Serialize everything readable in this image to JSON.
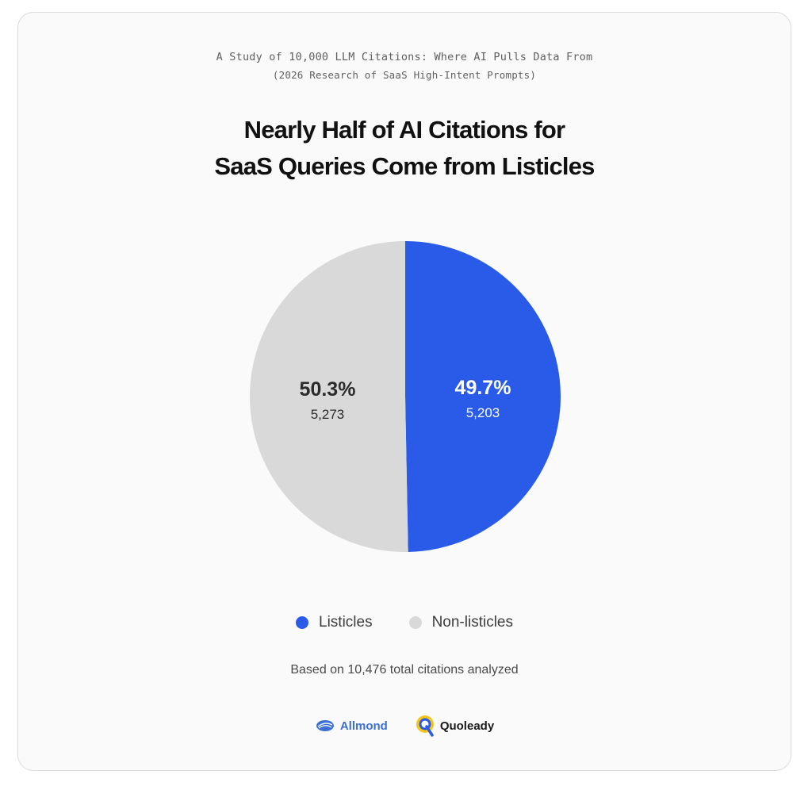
{
  "header": {
    "study_line": "A Study of 10,000 LLM Citations: Where AI Pulls Data From",
    "research_line": "(2026 Research of SaaS High-Intent Prompts)",
    "title_line1": "Nearly Half of AI Citations for",
    "title_line2": "SaaS Queries Come from Listicles"
  },
  "chart_data": {
    "type": "pie",
    "title": "Nearly Half of AI Citations for SaaS Queries Come from Listicles",
    "slices": [
      {
        "label": "Listicles",
        "percent": 49.7,
        "percent_label": "49.7%",
        "count": 5203,
        "count_label": "5,203",
        "color": "#2a5be8",
        "label_color": "#ffffff"
      },
      {
        "label": "Non-listicles",
        "percent": 50.3,
        "percent_label": "50.3%",
        "count": 5273,
        "count_label": "5,273",
        "color": "#d9d9d9",
        "label_color": "#2b2b2b"
      }
    ],
    "total": 10476,
    "legend_position": "bottom"
  },
  "legend": {
    "items": [
      {
        "label": "Listicles",
        "color": "#2a5be8"
      },
      {
        "label": "Non-listicles",
        "color": "#d9d9d9"
      }
    ]
  },
  "footnote": "Based on 10,476 total citations analyzed",
  "logos": {
    "allmond": "Allmond",
    "quoleady": "Quoleady"
  }
}
